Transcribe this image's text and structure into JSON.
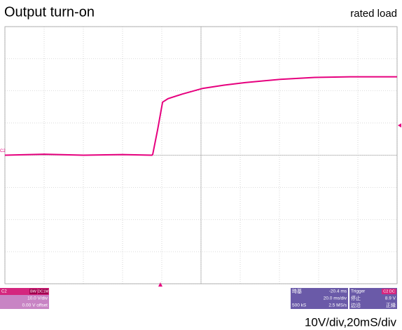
{
  "chart_data": {
    "type": "line",
    "title": "Output turn-on",
    "annotation": "rated load",
    "footer": "10V/div,20mS/div",
    "x": [
      0,
      20,
      40,
      60,
      75,
      75.4,
      77.9,
      80.4,
      83.2,
      90.4,
      101,
      111.8,
      122.5,
      140.4,
      158,
      176,
      200
    ],
    "series": [
      {
        "name": "C2",
        "color": "#e6007e",
        "values": [
          0,
          0.3,
          0,
          0.2,
          0,
          0.3,
          8,
          16.5,
          17.6,
          19,
          20.8,
          21.8,
          22.6,
          23.6,
          24.2,
          24.4,
          24.4
        ]
      }
    ],
    "xlim": [
      0,
      200
    ],
    "ylim": [
      -40,
      40
    ],
    "xticks": [
      0,
      20,
      40,
      60,
      80,
      100,
      120,
      140,
      160,
      180,
      200
    ],
    "yticks": [
      -40,
      -30,
      -20,
      -10,
      0,
      10,
      20,
      30,
      40
    ],
    "grid": true,
    "channel_panel": [
      "C2",
      "BW",
      "DC1M",
      "10.0 V/div",
      "0.00 V offset"
    ],
    "timebase_panel": [
      "時基",
      "-20.4 ms",
      "20.0 ms/div",
      "500 kS",
      "2.5 MS/s"
    ],
    "trigger_panel": [
      "Trigger",
      "C2 DC",
      "停止",
      "8.9 V",
      "边沿",
      "正緣"
    ]
  }
}
